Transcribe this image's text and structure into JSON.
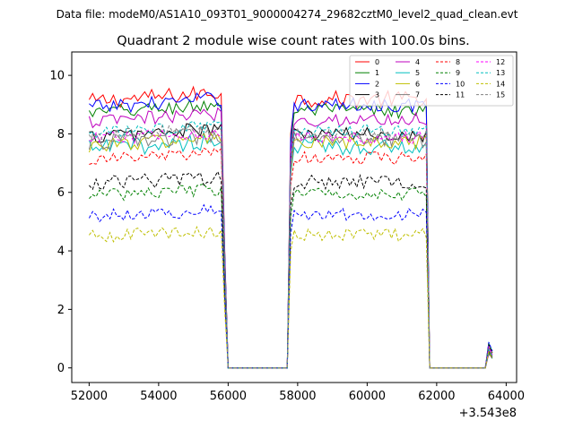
{
  "figure": {
    "suptitle": "Data file: modeM0/AS1A10_093T01_9000004274_29682cztM0_level2_quad_clean.evt"
  },
  "chart_data": {
    "type": "line",
    "title": "Quadrant 2 module wise count rates with 100.0s bins.",
    "xlabel": "",
    "ylabel": "",
    "x_offset_label": "+3.543e8",
    "xlim": [
      51500,
      64300
    ],
    "ylim": [
      -0.5,
      10.8
    ],
    "xticks": [
      52000,
      54000,
      56000,
      58000,
      60000,
      62000,
      64000
    ],
    "xtick_labels": [
      "52000",
      "54000",
      "56000",
      "58000",
      "60000",
      "62000",
      "64000"
    ],
    "yticks": [
      0,
      2,
      4,
      6,
      8,
      10
    ],
    "ytick_labels": [
      "0",
      "2",
      "4",
      "6",
      "8",
      "10"
    ],
    "bin_width": 100,
    "segments": [
      {
        "x_start": 52000,
        "x_end": 55800
      },
      {
        "x_start": 57800,
        "x_end": 61700
      },
      {
        "x_start": 63500,
        "x_end": 63600
      }
    ],
    "gap_value": 0.0,
    "legend": {
      "location": "top-right",
      "columns": 4
    },
    "series": [
      {
        "name": "0",
        "color": "#ff0000",
        "dash": "solid",
        "level": 9.1,
        "noise": 0.28
      },
      {
        "name": "1",
        "color": "#008000",
        "dash": "solid",
        "level": 8.7,
        "noise": 0.25
      },
      {
        "name": "2",
        "color": "#0000ff",
        "dash": "solid",
        "level": 8.9,
        "noise": 0.25
      },
      {
        "name": "3",
        "color": "#000000",
        "dash": "solid",
        "level": 7.9,
        "noise": 0.25
      },
      {
        "name": "4",
        "color": "#bf00bf",
        "dash": "solid",
        "level": 8.4,
        "noise": 0.25
      },
      {
        "name": "5",
        "color": "#00bfbf",
        "dash": "solid",
        "level": 7.5,
        "noise": 0.3
      },
      {
        "name": "6",
        "color": "#bfbf00",
        "dash": "solid",
        "level": 7.6,
        "noise": 0.25
      },
      {
        "name": "7",
        "color": "#808080",
        "dash": "solid",
        "level": 7.7,
        "noise": 0.3
      },
      {
        "name": "8",
        "color": "#ff0000",
        "dash": "dashed",
        "level": 7.1,
        "noise": 0.22
      },
      {
        "name": "9",
        "color": "#008000",
        "dash": "dashed",
        "level": 5.9,
        "noise": 0.22
      },
      {
        "name": "10",
        "color": "#0000ff",
        "dash": "dashed",
        "level": 5.2,
        "noise": 0.22
      },
      {
        "name": "11",
        "color": "#000000",
        "dash": "dashed",
        "level": 6.3,
        "noise": 0.25
      },
      {
        "name": "12",
        "color": "#ff00ff",
        "dash": "dashed",
        "level": 7.8,
        "noise": 0.22
      },
      {
        "name": "13",
        "color": "#00bfbf",
        "dash": "dashed",
        "level": 8.0,
        "noise": 0.22
      },
      {
        "name": "14",
        "color": "#bfbf00",
        "dash": "dashed",
        "level": 4.5,
        "noise": 0.22
      },
      {
        "name": "15",
        "color": "#808080",
        "dash": "dashed",
        "level": 7.9,
        "noise": 0.22
      }
    ]
  }
}
